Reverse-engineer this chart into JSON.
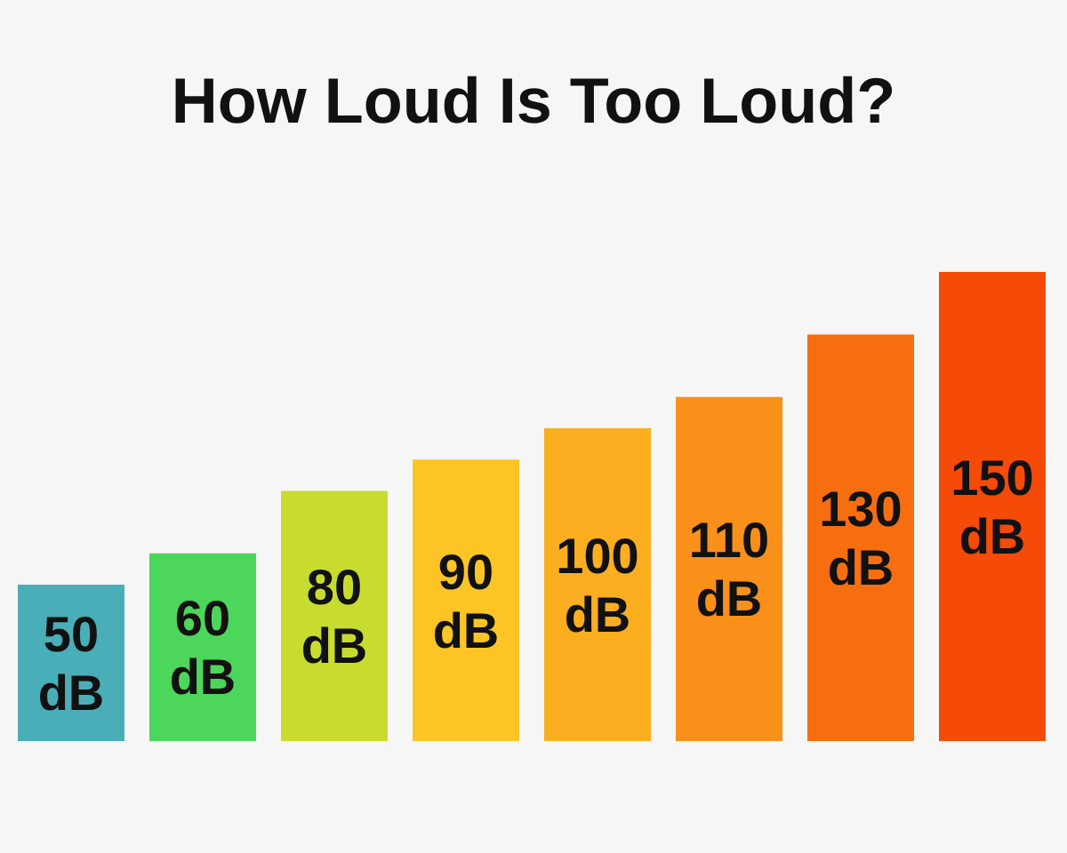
{
  "chart_data": {
    "type": "bar",
    "title": "How Loud Is Too Loud?",
    "categories": [
      null,
      null,
      null,
      null,
      null,
      null,
      null,
      null
    ],
    "values": [
      50,
      60,
      80,
      90,
      100,
      110,
      130,
      150
    ],
    "value_labels": [
      "50 dB",
      "60 dB",
      "80 dB",
      "90 dB",
      "100 dB",
      "110 dB",
      "130 dB",
      "150 dB"
    ],
    "colors": [
      "#4aaeb8",
      "#4cd65a",
      "#c8dc30",
      "#fcc525",
      "#fbae1f",
      "#f9901a",
      "#f76e10",
      "#f54a08"
    ],
    "tick_labels": false
  }
}
